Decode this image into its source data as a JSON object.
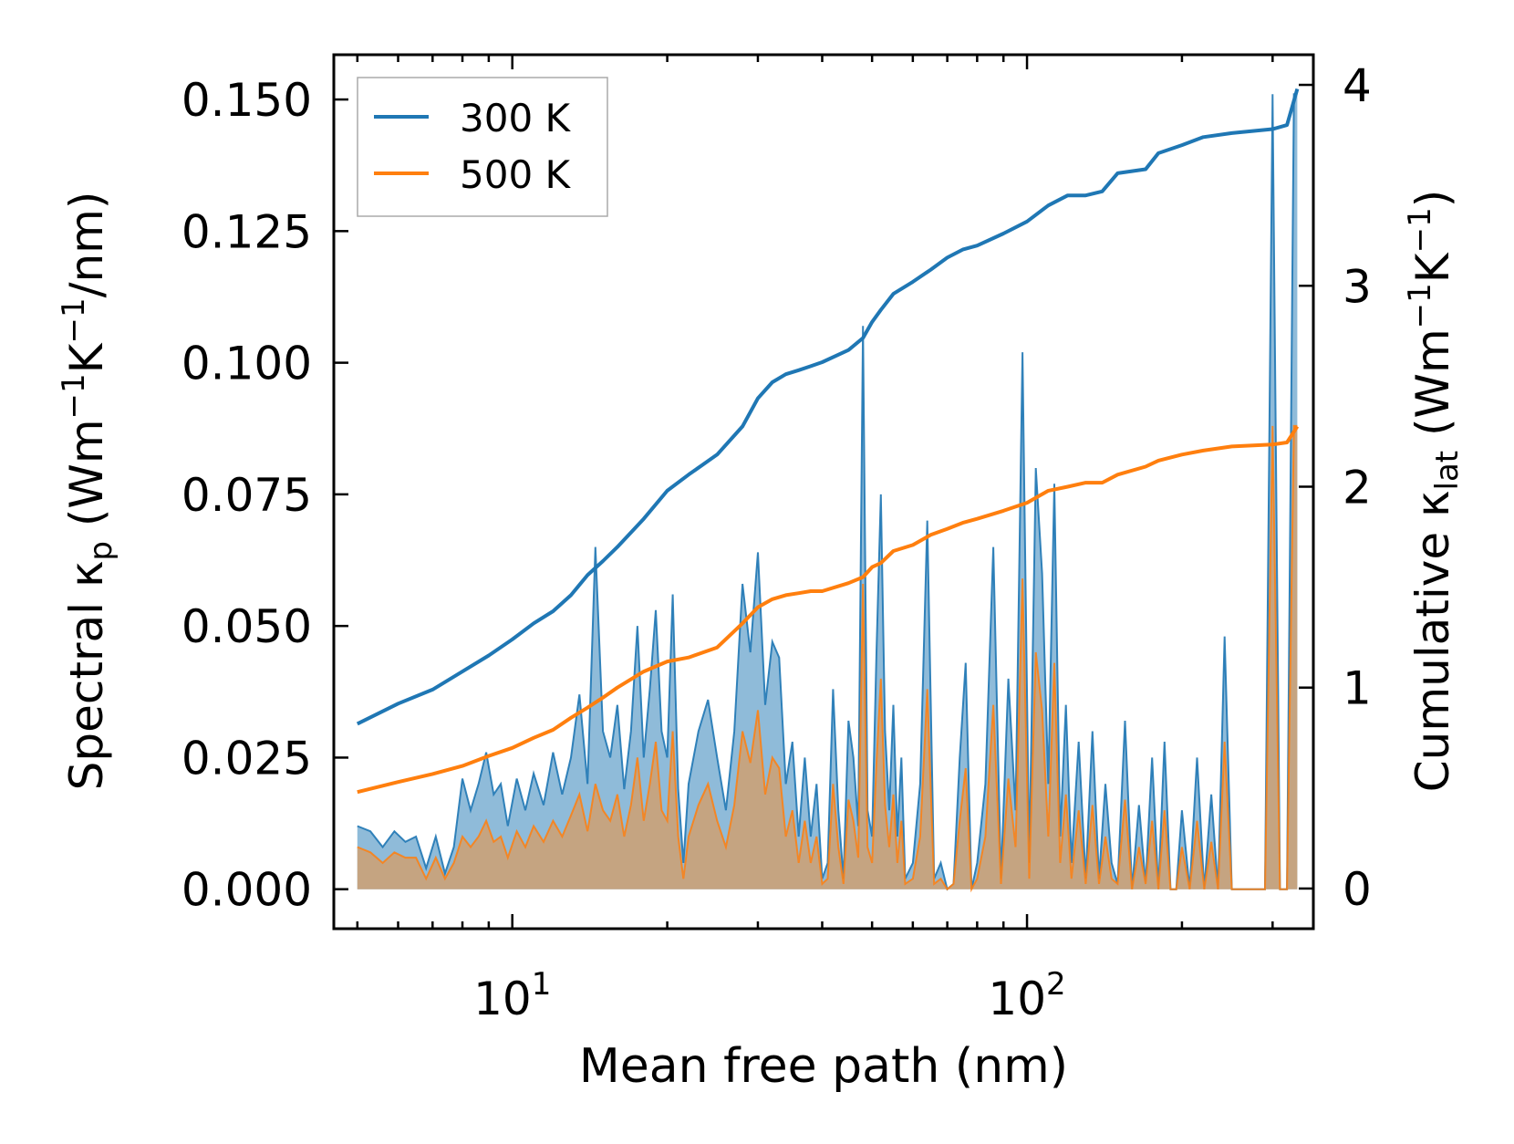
{
  "chart_data": {
    "type": "line",
    "title": "",
    "xlabel": "Mean free path (nm)",
    "x_scale": "log",
    "xlim": [
      4.5,
      360
    ],
    "x_ticks": [
      {
        "value": 10,
        "base": "10",
        "exp": "1"
      },
      {
        "value": 100,
        "base": "10",
        "exp": "2"
      }
    ],
    "y_left": {
      "label_pre": "Spectral κ",
      "label_sub": "p",
      "label_post": " (Wm",
      "label_sup1": "−1",
      "label_mid": "K",
      "label_sup2": "−1",
      "label_end": "/nm)",
      "ylim": [
        -0.0075,
        0.1585
      ],
      "ticks": [
        {
          "value": 0.0,
          "label": "0.000"
        },
        {
          "value": 0.025,
          "label": "0.025"
        },
        {
          "value": 0.05,
          "label": "0.050"
        },
        {
          "value": 0.075,
          "label": "0.075"
        },
        {
          "value": 0.1,
          "label": "0.100"
        },
        {
          "value": 0.125,
          "label": "0.125"
        },
        {
          "value": 0.15,
          "label": "0.150"
        }
      ]
    },
    "y_right": {
      "label_pre": "Cumulative κ",
      "label_sub": "lat",
      "label_post": " (Wm",
      "label_sup1": "−1",
      "label_mid": "K",
      "label_sup2": "−1",
      "label_end": ")",
      "ylim": [
        -0.2,
        4.15
      ],
      "ticks": [
        {
          "value": 0,
          "label": "0"
        },
        {
          "value": 1,
          "label": "1"
        },
        {
          "value": 2,
          "label": "2"
        },
        {
          "value": 3,
          "label": "3"
        },
        {
          "value": 4,
          "label": "4"
        }
      ]
    },
    "legend": {
      "position": "top-left",
      "entries": [
        "300 K",
        "500 K"
      ]
    },
    "colors": {
      "300 K": "#1f77b4",
      "500 K": "#ff7f0e",
      "spectral_300_fill": "#1f77b4",
      "spectral_500_fill": "#c8a27c"
    },
    "series": [
      {
        "name": "300 K",
        "axis": "right",
        "kind": "cumulative",
        "x": [
          5,
          6,
          7,
          8,
          9,
          10,
          11,
          12,
          13,
          14,
          15,
          16,
          18,
          20,
          22,
          25,
          28,
          30,
          32,
          34,
          36,
          38,
          40,
          45,
          48,
          50,
          52,
          55,
          60,
          65,
          70,
          75,
          80,
          90,
          100,
          110,
          120,
          130,
          140,
          150,
          170,
          180,
          200,
          220,
          250,
          300,
          320,
          335
        ],
        "y": [
          0.82,
          0.92,
          0.99,
          1.08,
          1.16,
          1.24,
          1.32,
          1.38,
          1.46,
          1.56,
          1.63,
          1.7,
          1.84,
          1.98,
          2.06,
          2.16,
          2.3,
          2.44,
          2.52,
          2.56,
          2.58,
          2.6,
          2.62,
          2.68,
          2.74,
          2.82,
          2.88,
          2.96,
          3.02,
          3.08,
          3.14,
          3.18,
          3.2,
          3.26,
          3.32,
          3.4,
          3.45,
          3.45,
          3.47,
          3.56,
          3.58,
          3.66,
          3.7,
          3.74,
          3.76,
          3.78,
          3.8,
          3.98
        ]
      },
      {
        "name": "500 K",
        "axis": "right",
        "kind": "cumulative",
        "x": [
          5,
          6,
          7,
          8,
          9,
          10,
          11,
          12,
          13,
          14,
          15,
          16,
          18,
          20,
          22,
          25,
          28,
          30,
          32,
          34,
          36,
          38,
          40,
          45,
          48,
          50,
          52,
          55,
          60,
          65,
          70,
          75,
          80,
          90,
          100,
          110,
          120,
          130,
          140,
          150,
          170,
          180,
          200,
          220,
          250,
          300,
          320,
          335
        ],
        "y": [
          0.48,
          0.53,
          0.57,
          0.61,
          0.66,
          0.7,
          0.75,
          0.79,
          0.85,
          0.9,
          0.95,
          1.0,
          1.08,
          1.13,
          1.15,
          1.2,
          1.32,
          1.4,
          1.44,
          1.46,
          1.47,
          1.48,
          1.48,
          1.52,
          1.55,
          1.6,
          1.62,
          1.68,
          1.71,
          1.76,
          1.79,
          1.82,
          1.84,
          1.88,
          1.92,
          1.98,
          2.0,
          2.02,
          2.02,
          2.06,
          2.1,
          2.13,
          2.16,
          2.18,
          2.2,
          2.21,
          2.22,
          2.3
        ]
      },
      {
        "name": "300 K spectral",
        "axis": "left",
        "kind": "spectral",
        "x": [
          5,
          5.3,
          5.6,
          5.9,
          6.2,
          6.5,
          6.8,
          7.1,
          7.4,
          7.7,
          8.0,
          8.3,
          8.6,
          8.9,
          9.2,
          9.5,
          9.8,
          10.2,
          10.6,
          11.0,
          11.5,
          12.0,
          12.5,
          13.0,
          13.5,
          14.0,
          14.5,
          15.0,
          15.5,
          16.0,
          16.5,
          17.0,
          17.5,
          18.0,
          18.5,
          19.0,
          19.5,
          20.0,
          20.5,
          21.0,
          21.5,
          22.0,
          23.0,
          24.0,
          25.0,
          26.0,
          27.0,
          28.0,
          29.0,
          30.0,
          31.0,
          32.0,
          33.0,
          34.0,
          35.0,
          36.0,
          37.0,
          38.0,
          39.0,
          40.0,
          41.0,
          42.0,
          43.0,
          44.0,
          45.0,
          46.0,
          47.0,
          48.0,
          49.0,
          50.0,
          51.0,
          52.0,
          53.0,
          54.0,
          55.0,
          56.0,
          57.0,
          58.0,
          60.0,
          62.0,
          64.0,
          66.0,
          68.0,
          70.0,
          72.0,
          74.0,
          76.0,
          78.0,
          80.0,
          83.0,
          86.0,
          89.0,
          92.0,
          95.0,
          98.0,
          101.0,
          104.0,
          107.0,
          110.0,
          113.0,
          116.0,
          119.0,
          122.0,
          126.0,
          130.0,
          134.0,
          138.0,
          142.0,
          146.0,
          150.0,
          155.0,
          160.0,
          165.0,
          170.0,
          175.0,
          180.0,
          185.0,
          190.0,
          195.0,
          200.0,
          207.0,
          214.0,
          221.0,
          228.0,
          235.0,
          242.0,
          250.0,
          270.0,
          290.0,
          300.0,
          310.0,
          320.0,
          330.0,
          335.0
        ],
        "y": [
          0.012,
          0.011,
          0.008,
          0.011,
          0.009,
          0.01,
          0.004,
          0.01,
          0.003,
          0.008,
          0.021,
          0.015,
          0.02,
          0.026,
          0.018,
          0.02,
          0.012,
          0.021,
          0.015,
          0.022,
          0.016,
          0.026,
          0.018,
          0.025,
          0.037,
          0.02,
          0.065,
          0.03,
          0.025,
          0.035,
          0.019,
          0.03,
          0.05,
          0.025,
          0.038,
          0.053,
          0.03,
          0.025,
          0.056,
          0.019,
          0.005,
          0.02,
          0.03,
          0.036,
          0.025,
          0.015,
          0.03,
          0.058,
          0.045,
          0.064,
          0.035,
          0.047,
          0.044,
          0.02,
          0.028,
          0.01,
          0.025,
          0.01,
          0.02,
          0.002,
          0.005,
          0.038,
          0.015,
          0.002,
          0.032,
          0.025,
          0.012,
          0.107,
          0.015,
          0.01,
          0.045,
          0.075,
          0.03,
          0.015,
          0.035,
          0.01,
          0.025,
          0.002,
          0.005,
          0.02,
          0.07,
          0.002,
          0.005,
          0.0,
          0.001,
          0.025,
          0.043,
          0.0,
          0.005,
          0.02,
          0.065,
          0.002,
          0.04,
          0.015,
          0.102,
          0.005,
          0.08,
          0.06,
          0.02,
          0.077,
          0.01,
          0.035,
          0.005,
          0.028,
          0.002,
          0.03,
          0.002,
          0.02,
          0.005,
          0.001,
          0.032,
          0.0,
          0.016,
          0.001,
          0.025,
          0.0,
          0.028,
          0.0,
          0.0,
          0.015,
          0.0,
          0.025,
          0.0,
          0.018,
          0.0,
          0.048,
          0.0,
          0.0,
          0.0,
          0.151,
          0.0,
          0.0,
          0.151,
          0.151
        ]
      },
      {
        "name": "500 K spectral",
        "axis": "left",
        "kind": "spectral",
        "x": [
          5,
          5.3,
          5.6,
          5.9,
          6.2,
          6.5,
          6.8,
          7.1,
          7.4,
          7.7,
          8.0,
          8.3,
          8.6,
          8.9,
          9.2,
          9.5,
          9.8,
          10.2,
          10.6,
          11.0,
          11.5,
          12.0,
          12.5,
          13.0,
          13.5,
          14.0,
          14.5,
          15.0,
          15.5,
          16.0,
          16.5,
          17.0,
          17.5,
          18.0,
          18.5,
          19.0,
          19.5,
          20.0,
          20.5,
          21.0,
          21.5,
          22.0,
          23.0,
          24.0,
          25.0,
          26.0,
          27.0,
          28.0,
          29.0,
          30.0,
          31.0,
          32.0,
          33.0,
          34.0,
          35.0,
          36.0,
          37.0,
          38.0,
          39.0,
          40.0,
          41.0,
          42.0,
          43.0,
          44.0,
          45.0,
          46.0,
          47.0,
          48.0,
          49.0,
          50.0,
          51.0,
          52.0,
          53.0,
          54.0,
          55.0,
          56.0,
          57.0,
          58.0,
          60.0,
          62.0,
          64.0,
          66.0,
          68.0,
          70.0,
          72.0,
          74.0,
          76.0,
          78.0,
          80.0,
          83.0,
          86.0,
          89.0,
          92.0,
          95.0,
          98.0,
          101.0,
          104.0,
          107.0,
          110.0,
          113.0,
          116.0,
          119.0,
          122.0,
          126.0,
          130.0,
          134.0,
          138.0,
          142.0,
          146.0,
          150.0,
          155.0,
          160.0,
          165.0,
          170.0,
          175.0,
          180.0,
          185.0,
          190.0,
          195.0,
          200.0,
          207.0,
          214.0,
          221.0,
          228.0,
          235.0,
          242.0,
          250.0,
          270.0,
          290.0,
          300.0,
          310.0,
          320.0,
          330.0,
          335.0
        ],
        "y": [
          0.008,
          0.007,
          0.005,
          0.007,
          0.006,
          0.006,
          0.002,
          0.006,
          0.002,
          0.005,
          0.01,
          0.008,
          0.01,
          0.013,
          0.009,
          0.01,
          0.006,
          0.011,
          0.008,
          0.012,
          0.009,
          0.013,
          0.01,
          0.014,
          0.018,
          0.011,
          0.02,
          0.015,
          0.013,
          0.018,
          0.01,
          0.016,
          0.025,
          0.013,
          0.02,
          0.028,
          0.015,
          0.013,
          0.03,
          0.01,
          0.002,
          0.01,
          0.016,
          0.02,
          0.013,
          0.008,
          0.016,
          0.03,
          0.024,
          0.034,
          0.018,
          0.025,
          0.023,
          0.01,
          0.015,
          0.005,
          0.013,
          0.005,
          0.01,
          0.001,
          0.002,
          0.02,
          0.008,
          0.001,
          0.017,
          0.013,
          0.006,
          0.058,
          0.008,
          0.005,
          0.024,
          0.04,
          0.016,
          0.008,
          0.018,
          0.005,
          0.013,
          0.001,
          0.002,
          0.01,
          0.038,
          0.001,
          0.002,
          0.0,
          0.001,
          0.013,
          0.023,
          0.0,
          0.002,
          0.01,
          0.035,
          0.001,
          0.021,
          0.008,
          0.059,
          0.002,
          0.045,
          0.034,
          0.01,
          0.043,
          0.005,
          0.018,
          0.002,
          0.015,
          0.001,
          0.016,
          0.001,
          0.01,
          0.002,
          0.001,
          0.017,
          0.0,
          0.008,
          0.001,
          0.013,
          0.0,
          0.015,
          0.0,
          0.0,
          0.008,
          0.0,
          0.013,
          0.0,
          0.009,
          0.0,
          0.028,
          0.0,
          0.0,
          0.0,
          0.088,
          0.0,
          0.0,
          0.088,
          0.088
        ]
      }
    ]
  }
}
